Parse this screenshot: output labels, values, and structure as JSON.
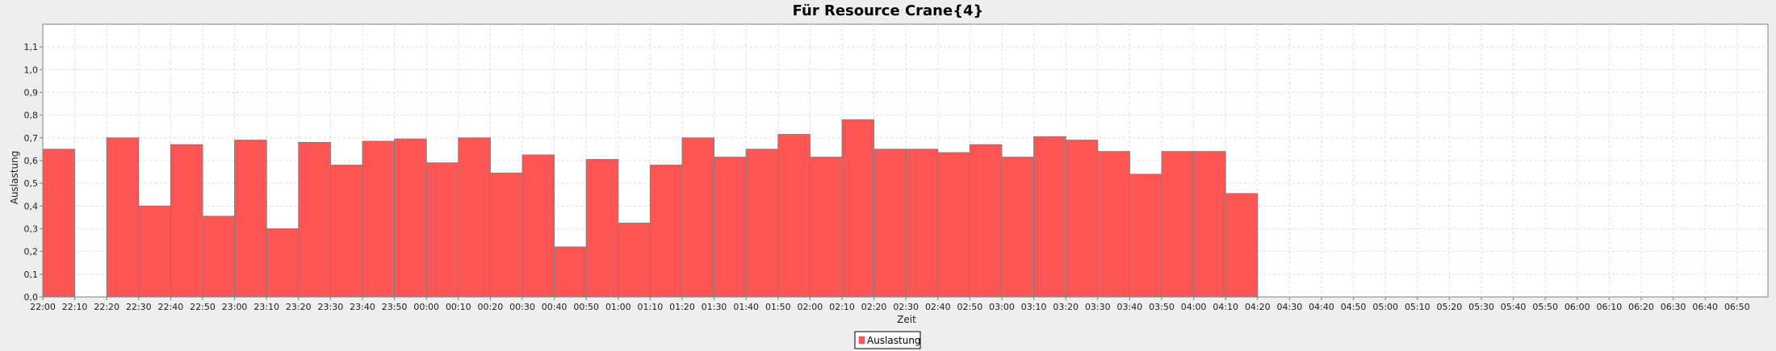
{
  "chart_data": {
    "type": "bar",
    "title": "Für Resource Crane{4}",
    "xlabel": "Zeit",
    "ylabel": "Auslastung",
    "ylim": [
      0,
      1.2
    ],
    "y_ticks": [
      "0,0",
      "0,1",
      "0,2",
      "0,3",
      "0,4",
      "0,5",
      "0,6",
      "0,7",
      "0,8",
      "0,9",
      "1,0",
      "1,1"
    ],
    "x_ticks": [
      "22:00",
      "22:10",
      "22:20",
      "22:30",
      "22:40",
      "22:50",
      "23:00",
      "23:10",
      "23:20",
      "23:30",
      "23:40",
      "23:50",
      "00:00",
      "00:10",
      "00:20",
      "00:30",
      "00:40",
      "00:50",
      "01:00",
      "01:10",
      "01:20",
      "01:30",
      "01:40",
      "01:50",
      "02:00",
      "02:10",
      "02:20",
      "02:30",
      "02:40",
      "02:50",
      "03:00",
      "03:10",
      "03:20",
      "03:30",
      "03:40",
      "03:50",
      "04:00",
      "04:10",
      "04:20",
      "04:30",
      "04:40",
      "04:50",
      "05:00",
      "05:10",
      "05:20",
      "05:30",
      "05:40",
      "05:50",
      "06:00",
      "06:10",
      "06:20",
      "06:30",
      "06:40",
      "06:50"
    ],
    "series": [
      {
        "name": "Auslastung",
        "color": "#ff5555",
        "values": [
          0.65,
          0,
          0.7,
          0.4,
          0.67,
          0.355,
          0.69,
          0.3,
          0.68,
          0.58,
          0.685,
          0.695,
          0.59,
          0.7,
          0.545,
          0.625,
          0.22,
          0.605,
          0.325,
          0.58,
          0.7,
          0.615,
          0.65,
          0.715,
          0.615,
          0.78,
          0.65,
          0.65,
          0.635,
          0.67,
          0.615,
          0.705,
          0.69,
          0.64,
          0.54,
          0.64,
          0.64,
          0.455
        ]
      }
    ],
    "grid": true,
    "legend_position": "bottom-center"
  }
}
